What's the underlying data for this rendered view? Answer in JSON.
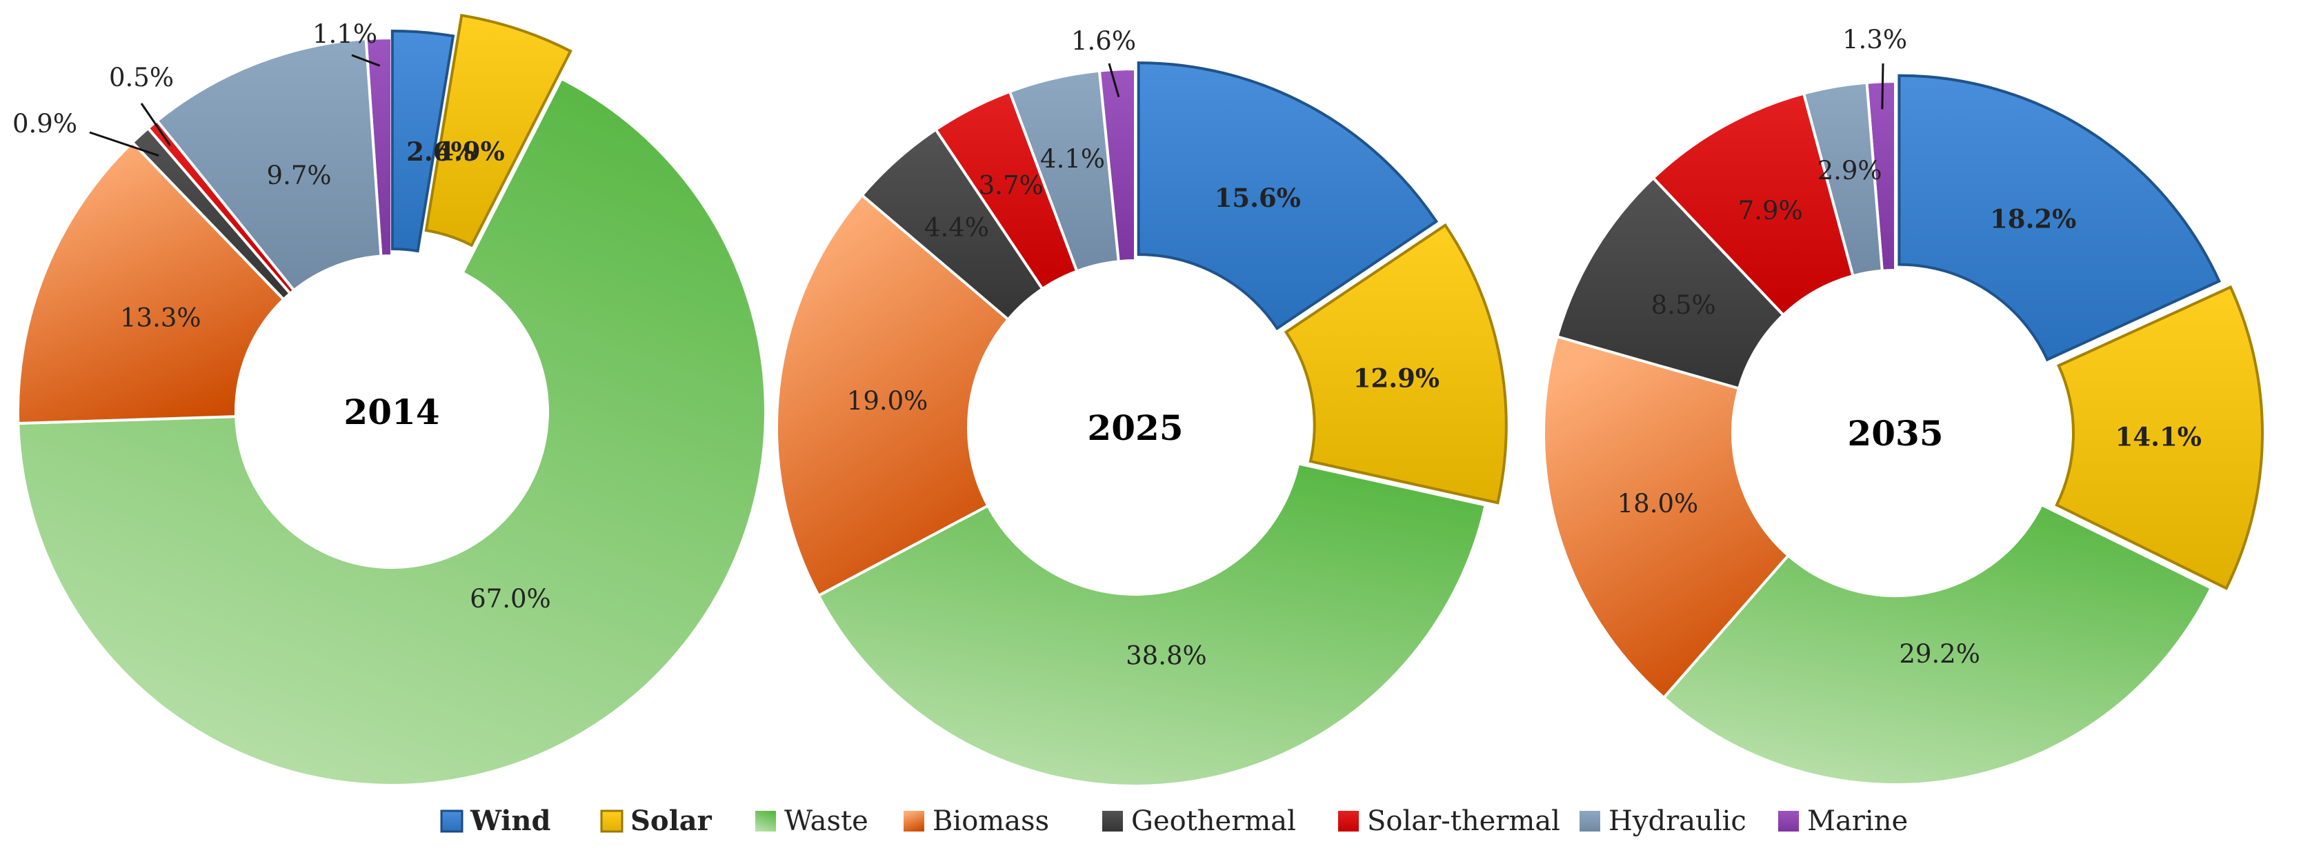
{
  "chart_data": [
    {
      "type": "donut",
      "title": "2014",
      "series": [
        {
          "name": "Wind",
          "value": 2.6,
          "label": "2.6%"
        },
        {
          "name": "Solar",
          "value": 4.9,
          "label": "4.9%"
        },
        {
          "name": "Waste",
          "value": 67.0,
          "label": "67.0%"
        },
        {
          "name": "Biomass",
          "value": 13.3,
          "label": "13.3%"
        },
        {
          "name": "Geothermal",
          "value": 0.9,
          "label": "0.9%"
        },
        {
          "name": "Solar-thermal",
          "value": 0.5,
          "label": "0.5%"
        },
        {
          "name": "Hydraulic",
          "value": 9.7,
          "label": "9.7%"
        },
        {
          "name": "Marine",
          "value": 1.1,
          "label": "1.1%"
        }
      ]
    },
    {
      "type": "donut",
      "title": "2025",
      "series": [
        {
          "name": "Wind",
          "value": 15.6,
          "label": "15.6%"
        },
        {
          "name": "Solar",
          "value": 12.9,
          "label": "12.9%"
        },
        {
          "name": "Waste",
          "value": 38.8,
          "label": "38.8%"
        },
        {
          "name": "Biomass",
          "value": 19.0,
          "label": "19.0%"
        },
        {
          "name": "Geothermal",
          "value": 4.4,
          "label": "4.4%"
        },
        {
          "name": "Solar-thermal",
          "value": 3.7,
          "label": "3.7%"
        },
        {
          "name": "Hydraulic",
          "value": 4.1,
          "label": "4.1%"
        },
        {
          "name": "Marine",
          "value": 1.6,
          "label": "1.6%"
        }
      ]
    },
    {
      "type": "donut",
      "title": "2035",
      "series": [
        {
          "name": "Wind",
          "value": 18.2,
          "label": "18.2%"
        },
        {
          "name": "Solar",
          "value": 14.1,
          "label": "14.1%"
        },
        {
          "name": "Waste",
          "value": 29.2,
          "label": "29.2%"
        },
        {
          "name": "Biomass",
          "value": 18.0,
          "label": "18.0%"
        },
        {
          "name": "Geothermal",
          "value": 8.5,
          "label": "8.5%"
        },
        {
          "name": "Solar-thermal",
          "value": 7.9,
          "label": "7.9%"
        },
        {
          "name": "Hydraulic",
          "value": 2.9,
          "label": "2.9%"
        },
        {
          "name": "Marine",
          "value": 1.3,
          "label": "1.3%"
        }
      ]
    }
  ],
  "legend": {
    "placement": "bottom",
    "items": [
      {
        "name": "Wind",
        "bold": true
      },
      {
        "name": "Solar",
        "bold": true
      },
      {
        "name": "Waste",
        "bold": false
      },
      {
        "name": "Biomass",
        "bold": false
      },
      {
        "name": "Geothermal",
        "bold": false
      },
      {
        "name": "Solar-thermal",
        "bold": false
      },
      {
        "name": "Hydraulic",
        "bold": false
      },
      {
        "name": "Marine",
        "bold": false
      }
    ]
  },
  "colors": {
    "Wind": "#2f7fd6",
    "Solar": "#ffc800",
    "Waste": "#7cc46a",
    "Biomass": "#f0803a",
    "Geothermal": "#3c3c3c",
    "Solar-thermal": "#e00000",
    "Hydraulic": "#7f9cba",
    "Marine": "#8e3db5"
  }
}
